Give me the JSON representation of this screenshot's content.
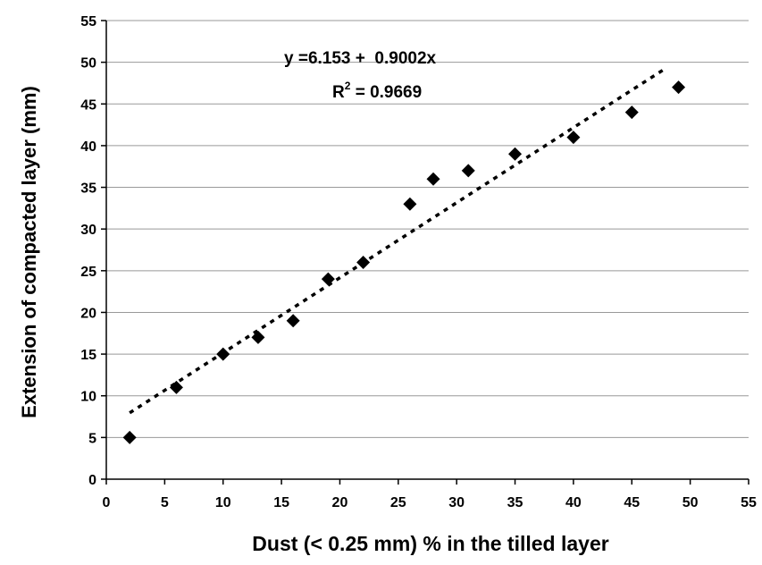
{
  "chart_data": {
    "type": "scatter",
    "title": "",
    "xlabel": "Dust (< 0.25 mm) % in the tilled layer",
    "ylabel": "Extension of compacted layer (mm)",
    "xlim": [
      0,
      55
    ],
    "ylim": [
      0,
      55
    ],
    "x_ticks": [
      0,
      5,
      10,
      15,
      20,
      25,
      30,
      35,
      40,
      45,
      50,
      55
    ],
    "y_ticks": [
      0,
      5,
      10,
      15,
      20,
      25,
      30,
      35,
      40,
      45,
      50,
      55
    ],
    "grid": "horizontal",
    "marker": "diamond",
    "x": [
      2,
      6,
      10,
      13,
      16,
      19,
      22,
      26,
      28,
      31,
      35,
      40,
      45,
      49
    ],
    "y": [
      5,
      11,
      15,
      17,
      19,
      24,
      26,
      33,
      36,
      37,
      39,
      41,
      44,
      47
    ],
    "trendline": {
      "style": "dotted",
      "x_range": [
        2,
        48
      ],
      "intercept": 6.153,
      "slope": 0.9002
    },
    "annotations": {
      "equation": "y =6.153 +  0.9002x",
      "r_squared_prefix": "R",
      "r_squared_exponent": "2",
      "r_squared_value": " = 0.9669"
    },
    "colors": {
      "marker": "#000000",
      "grid": "#999999",
      "axis": "#000000"
    }
  }
}
